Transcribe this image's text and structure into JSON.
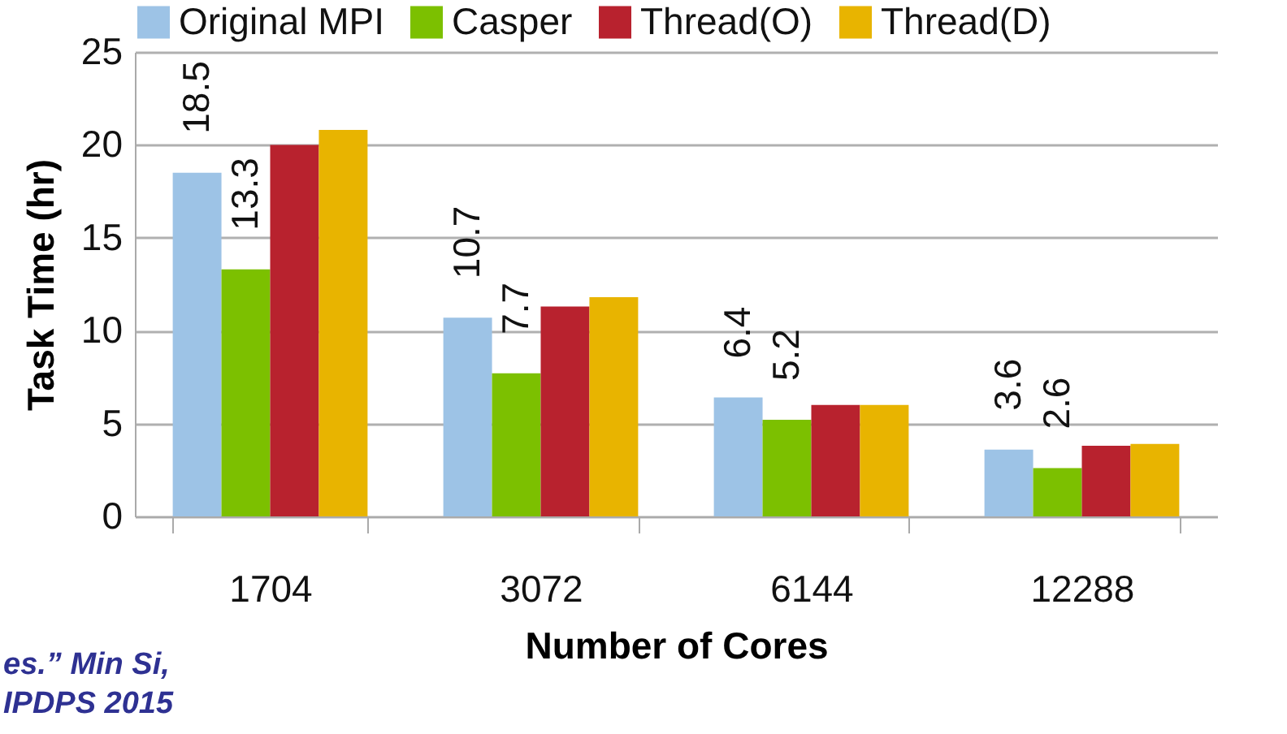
{
  "chart_data": {
    "type": "bar",
    "xlabel": "Number of Cores",
    "ylabel": "Task Time (hr)",
    "categories": [
      "1704",
      "3072",
      "6144",
      "12288"
    ],
    "series": [
      {
        "name": "Original MPI",
        "color": "#9dc3e6",
        "values": [
          18.5,
          10.7,
          6.4,
          3.6
        ],
        "value_labels": [
          "18.5",
          "10.7",
          "6.4",
          "3.6"
        ]
      },
      {
        "name": "Casper",
        "color": "#7cc000",
        "values": [
          13.3,
          7.7,
          5.2,
          2.6
        ],
        "value_labels": [
          "13.3",
          "7.7",
          "5.2",
          "2.6"
        ]
      },
      {
        "name": "Thread(O)",
        "color": "#b8222e",
        "values": [
          20.0,
          11.3,
          6.0,
          3.8
        ]
      },
      {
        "name": "Thread(D)",
        "color": "#e8b400",
        "values": [
          20.8,
          11.8,
          6.0,
          3.9
        ]
      }
    ],
    "ylim": [
      0,
      25
    ],
    "yticks": [
      0,
      5,
      10,
      15,
      20,
      25
    ],
    "grid": "y",
    "legend": "top",
    "annotations": [
      "es.” Min Si,",
      "IPDPS 2015"
    ]
  }
}
